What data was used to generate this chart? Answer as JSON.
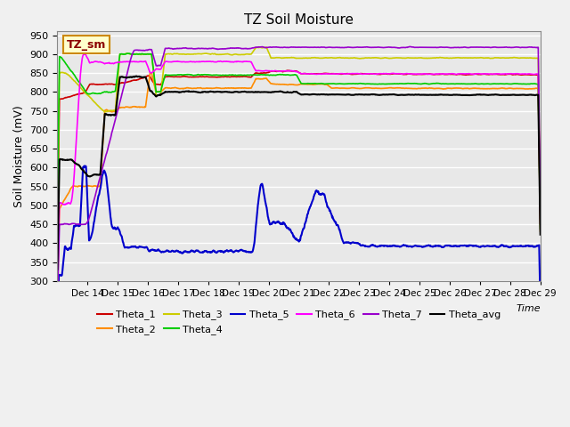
{
  "title": "TZ Soil Moisture",
  "ylabel": "Soil Moisture (mV)",
  "xlabel": "Time",
  "label_box": "TZ_sm",
  "ylim": [
    300,
    960
  ],
  "yticks": [
    300,
    350,
    400,
    450,
    500,
    550,
    600,
    650,
    700,
    750,
    800,
    850,
    900,
    950
  ],
  "xtick_positions": [
    1,
    2,
    3,
    4,
    5,
    6,
    7,
    8,
    9,
    10,
    11,
    12,
    13,
    14,
    15,
    16
  ],
  "xtick_labels": [
    "Dec 14",
    "Dec 15",
    "Dec 16",
    "Dec 17",
    "Dec 18",
    "Dec 19",
    "Dec 20",
    "Dec 21",
    "Dec 22",
    "Dec 23",
    "Dec 24",
    "Dec 25",
    "Dec 26",
    "Dec 27",
    "Dec 28",
    "Dec 29"
  ],
  "colors": {
    "Theta_1": "#cc0000",
    "Theta_2": "#ff8c00",
    "Theta_3": "#cccc00",
    "Theta_4": "#00cc00",
    "Theta_5": "#0000cc",
    "Theta_6": "#ff00ff",
    "Theta_7": "#9900cc",
    "Theta_avg": "#000000"
  },
  "background_color": "#e8e8e8",
  "grid_color": "#ffffff"
}
